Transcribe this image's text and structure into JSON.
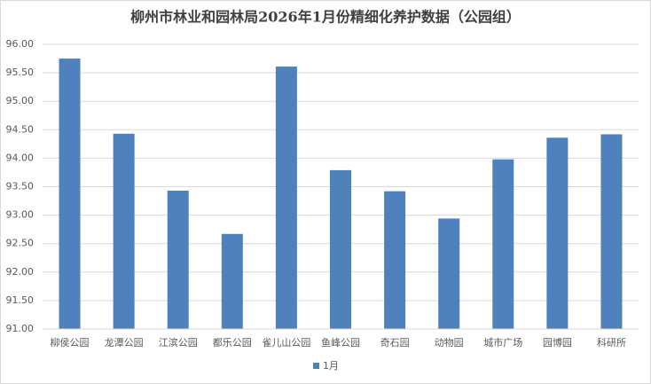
{
  "chart_data": {
    "type": "bar",
    "title": "柳州市林业和园林局2026年1月份精细化养护数据（公园组）",
    "categories": [
      "柳侯公园",
      "龙潭公园",
      "江滨公园",
      "都乐公园",
      "雀儿山公园",
      "鱼峰公园",
      "奇石园",
      "动物园",
      "城市广场",
      "园博园",
      "科研所"
    ],
    "series": [
      {
        "name": "1月",
        "color": "#4f81bd",
        "values": [
          95.75,
          94.43,
          93.43,
          92.67,
          95.61,
          93.79,
          93.42,
          92.94,
          93.98,
          94.36,
          94.42
        ]
      }
    ],
    "ylim": [
      91,
      96
    ],
    "yticks": [
      {
        "value": 91,
        "label": "91.00"
      },
      {
        "value": 91.5,
        "label": "91.50"
      },
      {
        "value": 92,
        "label": "92.00"
      },
      {
        "value": 92.5,
        "label": "92.50"
      },
      {
        "value": 93,
        "label": "93.00"
      },
      {
        "value": 93.5,
        "label": "93.50"
      },
      {
        "value": 94,
        "label": "94.00"
      },
      {
        "value": 94.5,
        "label": "94.50"
      },
      {
        "value": 95,
        "label": "95.00"
      },
      {
        "value": 95.5,
        "label": "95.50"
      },
      {
        "value": 96,
        "label": "96.00"
      }
    ],
    "grid": true,
    "legend": "bottom"
  }
}
